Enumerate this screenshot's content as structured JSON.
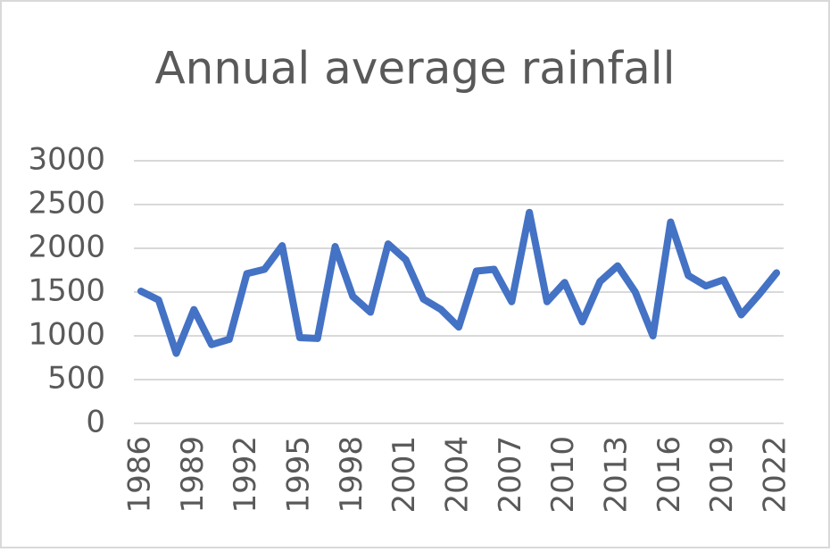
{
  "chart_data": {
    "type": "line",
    "title": "Annual average rainfall",
    "x": [
      1986,
      1987,
      1988,
      1989,
      1990,
      1991,
      1992,
      1993,
      1994,
      1995,
      1996,
      1997,
      1998,
      1999,
      2000,
      2001,
      2002,
      2003,
      2004,
      2005,
      2006,
      2007,
      2008,
      2009,
      2010,
      2011,
      2012,
      2013,
      2014,
      2015,
      2016,
      2017,
      2018,
      2019,
      2020,
      2021,
      2022
    ],
    "values": [
      1510,
      1410,
      800,
      1300,
      900,
      960,
      1710,
      1760,
      2030,
      980,
      970,
      2020,
      1450,
      1270,
      2050,
      1870,
      1420,
      1300,
      1100,
      1740,
      1760,
      1390,
      2410,
      1390,
      1610,
      1160,
      1620,
      1800,
      1500,
      1000,
      2300,
      1690,
      1570,
      1640,
      1240,
      1470,
      1720
    ],
    "color": "#4472c4",
    "xlim": [
      1985.6,
      2022.4
    ],
    "xticks": [
      1986,
      1989,
      1992,
      1995,
      1998,
      2001,
      2004,
      2007,
      2010,
      2013,
      2016,
      2019,
      2022
    ],
    "ylim": [
      0,
      3000
    ],
    "yticks": [
      0,
      500,
      1000,
      1500,
      2000,
      2500,
      3000
    ],
    "grid": true
  }
}
